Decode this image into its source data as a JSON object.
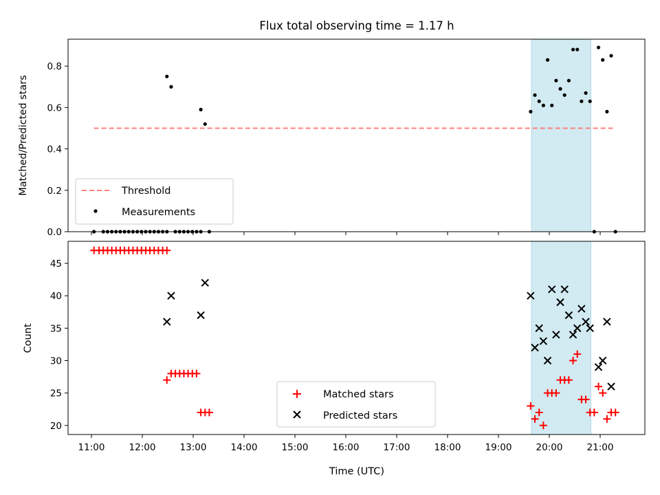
{
  "chart_data": [
    {
      "type": "scatter",
      "title": "Flux total observing time = 1.17 h",
      "ylabel": "Matched/Predicted stars",
      "xlabel": "",
      "ylim": [
        0,
        0.93
      ],
      "yticks": [
        "0.0",
        "0.2",
        "0.4",
        "0.6",
        "0.8"
      ],
      "ytick_values": [
        0,
        0.2,
        0.4,
        0.6,
        0.8
      ],
      "legend_position": "lower-left",
      "threshold": {
        "name": "Threshold",
        "value": 0.5,
        "x_range": [
          "11:03",
          "21:15"
        ],
        "color": "#ff7f7f",
        "style": "dashed"
      },
      "shaded_region": {
        "x_range": [
          "19:39",
          "20:49"
        ],
        "color": "#add8e6"
      },
      "series": [
        {
          "name": "Measurements",
          "marker": "dot",
          "color": "#000000",
          "points": [
            {
              "x": "11:03",
              "y": 0.0
            },
            {
              "x": "11:14",
              "y": 0.0
            },
            {
              "x": "11:19",
              "y": 0.0
            },
            {
              "x": "11:24",
              "y": 0.0
            },
            {
              "x": "11:29",
              "y": 0.0
            },
            {
              "x": "11:34",
              "y": 0.0
            },
            {
              "x": "11:39",
              "y": 0.0
            },
            {
              "x": "11:44",
              "y": 0.0
            },
            {
              "x": "11:49",
              "y": 0.0
            },
            {
              "x": "11:54",
              "y": 0.0
            },
            {
              "x": "11:59",
              "y": 0.0
            },
            {
              "x": "12:04",
              "y": 0.0
            },
            {
              "x": "12:09",
              "y": 0.0
            },
            {
              "x": "12:14",
              "y": 0.0
            },
            {
              "x": "12:19",
              "y": 0.0
            },
            {
              "x": "12:24",
              "y": 0.0
            },
            {
              "x": "12:29",
              "y": 0.0
            },
            {
              "x": "12:29",
              "y": 0.75
            },
            {
              "x": "12:34",
              "y": 0.7
            },
            {
              "x": "12:39",
              "y": 0.0
            },
            {
              "x": "12:44",
              "y": 0.0
            },
            {
              "x": "12:49",
              "y": 0.0
            },
            {
              "x": "12:54",
              "y": 0.0
            },
            {
              "x": "12:59",
              "y": 0.0
            },
            {
              "x": "13:04",
              "y": 0.0
            },
            {
              "x": "13:09",
              "y": 0.0
            },
            {
              "x": "13:09",
              "y": 0.59
            },
            {
              "x": "13:14",
              "y": 0.52
            },
            {
              "x": "13:19",
              "y": 0.0
            },
            {
              "x": "19:38",
              "y": 0.58
            },
            {
              "x": "19:43",
              "y": 0.66
            },
            {
              "x": "19:48",
              "y": 0.63
            },
            {
              "x": "19:53",
              "y": 0.61
            },
            {
              "x": "19:58",
              "y": 0.83
            },
            {
              "x": "20:03",
              "y": 0.61
            },
            {
              "x": "20:08",
              "y": 0.73
            },
            {
              "x": "20:13",
              "y": 0.69
            },
            {
              "x": "20:18",
              "y": 0.66
            },
            {
              "x": "20:23",
              "y": 0.73
            },
            {
              "x": "20:28",
              "y": 0.88
            },
            {
              "x": "20:33",
              "y": 0.88
            },
            {
              "x": "20:38",
              "y": 0.63
            },
            {
              "x": "20:43",
              "y": 0.67
            },
            {
              "x": "20:48",
              "y": 0.63
            },
            {
              "x": "20:53",
              "y": 0.0
            },
            {
              "x": "20:58",
              "y": 0.89
            },
            {
              "x": "21:03",
              "y": 0.83
            },
            {
              "x": "21:08",
              "y": 0.58
            },
            {
              "x": "21:13",
              "y": 0.85
            },
            {
              "x": "21:18",
              "y": 0.0
            }
          ]
        }
      ]
    },
    {
      "type": "scatter",
      "title": "",
      "xlabel": "Time (UTC)",
      "ylabel": "Count",
      "ylim": [
        18.6,
        48.4
      ],
      "yticks": [
        "20",
        "25",
        "30",
        "35",
        "40",
        "45"
      ],
      "ytick_values": [
        20,
        25,
        30,
        35,
        40,
        45
      ],
      "xticks": [
        "11:00",
        "12:00",
        "13:00",
        "14:00",
        "15:00",
        "16:00",
        "17:00",
        "18:00",
        "19:00",
        "20:00",
        "21:00"
      ],
      "legend_position": "lower-center",
      "shaded_region": {
        "x_range": [
          "19:39",
          "20:49"
        ],
        "color": "#add8e6"
      },
      "series": [
        {
          "name": "Matched stars",
          "marker": "plus",
          "color": "#ff0000",
          "points": [
            {
              "x": "11:03",
              "y": 47
            },
            {
              "x": "11:09",
              "y": 47
            },
            {
              "x": "11:14",
              "y": 47
            },
            {
              "x": "11:19",
              "y": 47
            },
            {
              "x": "11:24",
              "y": 47
            },
            {
              "x": "11:29",
              "y": 47
            },
            {
              "x": "11:34",
              "y": 47
            },
            {
              "x": "11:39",
              "y": 47
            },
            {
              "x": "11:44",
              "y": 47
            },
            {
              "x": "11:49",
              "y": 47
            },
            {
              "x": "11:54",
              "y": 47
            },
            {
              "x": "11:59",
              "y": 47
            },
            {
              "x": "12:04",
              "y": 47
            },
            {
              "x": "12:09",
              "y": 47
            },
            {
              "x": "12:14",
              "y": 47
            },
            {
              "x": "12:19",
              "y": 47
            },
            {
              "x": "12:24",
              "y": 47
            },
            {
              "x": "12:29",
              "y": 47
            },
            {
              "x": "12:29",
              "y": 27
            },
            {
              "x": "12:34",
              "y": 28
            },
            {
              "x": "12:39",
              "y": 28
            },
            {
              "x": "12:44",
              "y": 28
            },
            {
              "x": "12:49",
              "y": 28
            },
            {
              "x": "12:54",
              "y": 28
            },
            {
              "x": "12:59",
              "y": 28
            },
            {
              "x": "13:04",
              "y": 28
            },
            {
              "x": "13:09",
              "y": 22
            },
            {
              "x": "13:14",
              "y": 22
            },
            {
              "x": "13:19",
              "y": 22
            },
            {
              "x": "19:38",
              "y": 23
            },
            {
              "x": "19:43",
              "y": 21
            },
            {
              "x": "19:48",
              "y": 22
            },
            {
              "x": "19:53",
              "y": 20
            },
            {
              "x": "19:58",
              "y": 25
            },
            {
              "x": "20:03",
              "y": 25
            },
            {
              "x": "20:08",
              "y": 25
            },
            {
              "x": "20:13",
              "y": 27
            },
            {
              "x": "20:18",
              "y": 27
            },
            {
              "x": "20:23",
              "y": 27
            },
            {
              "x": "20:28",
              "y": 30
            },
            {
              "x": "20:33",
              "y": 31
            },
            {
              "x": "20:38",
              "y": 24
            },
            {
              "x": "20:43",
              "y": 24
            },
            {
              "x": "20:48",
              "y": 22
            },
            {
              "x": "20:53",
              "y": 22
            },
            {
              "x": "20:58",
              "y": 26
            },
            {
              "x": "21:03",
              "y": 25
            },
            {
              "x": "21:08",
              "y": 21
            },
            {
              "x": "21:13",
              "y": 22
            },
            {
              "x": "21:18",
              "y": 22
            }
          ]
        },
        {
          "name": "Predicted stars",
          "marker": "x",
          "color": "#000000",
          "points": [
            {
              "x": "12:29",
              "y": 36
            },
            {
              "x": "12:34",
              "y": 40
            },
            {
              "x": "13:09",
              "y": 37
            },
            {
              "x": "13:14",
              "y": 42
            },
            {
              "x": "19:38",
              "y": 40
            },
            {
              "x": "19:43",
              "y": 32
            },
            {
              "x": "19:48",
              "y": 35
            },
            {
              "x": "19:53",
              "y": 33
            },
            {
              "x": "19:58",
              "y": 30
            },
            {
              "x": "20:03",
              "y": 41
            },
            {
              "x": "20:08",
              "y": 34
            },
            {
              "x": "20:13",
              "y": 39
            },
            {
              "x": "20:18",
              "y": 41
            },
            {
              "x": "20:23",
              "y": 37
            },
            {
              "x": "20:28",
              "y": 34
            },
            {
              "x": "20:33",
              "y": 35
            },
            {
              "x": "20:38",
              "y": 38
            },
            {
              "x": "20:43",
              "y": 36
            },
            {
              "x": "20:48",
              "y": 35
            },
            {
              "x": "20:58",
              "y": 29
            },
            {
              "x": "21:03",
              "y": 30
            },
            {
              "x": "21:08",
              "y": 36
            },
            {
              "x": "21:13",
              "y": 26
            }
          ]
        }
      ]
    }
  ]
}
